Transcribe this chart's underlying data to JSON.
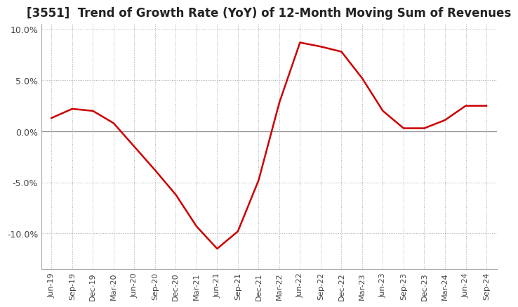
{
  "title": "[3551]  Trend of Growth Rate (YoY) of 12-Month Moving Sum of Revenues",
  "title_fontsize": 12,
  "line_color": "#cc0000",
  "background_color": "#ffffff",
  "grid_color": "#aaaaaa",
  "zero_line_color": "#888888",
  "ylim": [
    -0.135,
    0.105
  ],
  "yticks": [
    -0.1,
    -0.05,
    0.0,
    0.05,
    0.1
  ],
  "ytick_labels": [
    "-10.0%",
    "-5.0%",
    "0.0%",
    "5.0%",
    "10.0%"
  ],
  "dates": [
    "Jun-19",
    "Sep-19",
    "Dec-19",
    "Mar-20",
    "Jun-20",
    "Sep-20",
    "Dec-20",
    "Mar-21",
    "Jun-21",
    "Sep-21",
    "Dec-21",
    "Mar-22",
    "Jun-22",
    "Sep-22",
    "Dec-22",
    "Mar-23",
    "Jun-23",
    "Sep-23",
    "Dec-23",
    "Mar-24",
    "Jun-24",
    "Sep-24"
  ],
  "values": [
    0.013,
    0.022,
    0.02,
    0.008,
    -0.015,
    -0.038,
    -0.062,
    -0.093,
    -0.115,
    -0.098,
    -0.048,
    0.028,
    0.087,
    0.083,
    0.078,
    0.052,
    0.02,
    0.003,
    0.003,
    0.011,
    0.025,
    0.025
  ]
}
